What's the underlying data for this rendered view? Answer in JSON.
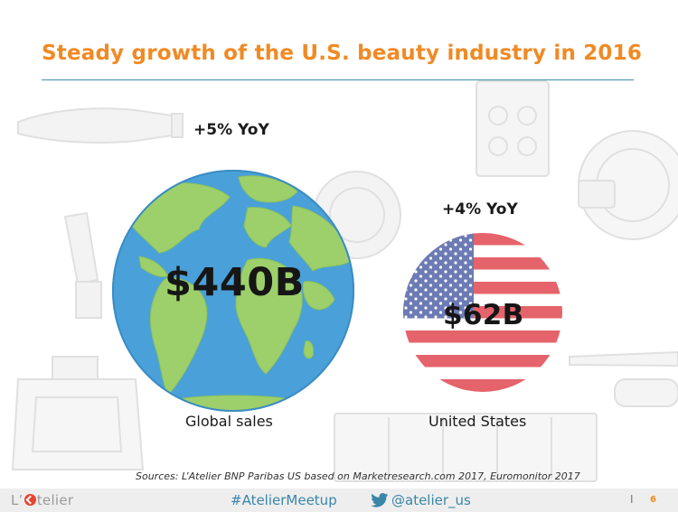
{
  "slide": {
    "title": "Steady growth of the U.S. beauty industry in 2016",
    "global": {
      "yoy": "+5% YoY",
      "value": "$440B",
      "label": "Global sales",
      "icon": "globe-icon"
    },
    "us": {
      "yoy": "+4% YoY",
      "value": "$62B",
      "label": "United States",
      "icon": "us-flag-icon"
    },
    "sources": "Sources: L’Atelier BNP Paribas US based on Marketresearch.com 2017, Euromonitor 2017"
  },
  "footer": {
    "logo_prefix": "L’",
    "logo_suffix": "telier",
    "hashtag": "#AtelierMeetup",
    "handle": "@atelier_us",
    "separator": "I",
    "page_number": "6"
  },
  "colors": {
    "title": "#f08a24",
    "rule": "#3f8fa8",
    "footer_text": "#3a86a8",
    "ocean": "#4aa0d8",
    "land": "#9dd06a"
  }
}
